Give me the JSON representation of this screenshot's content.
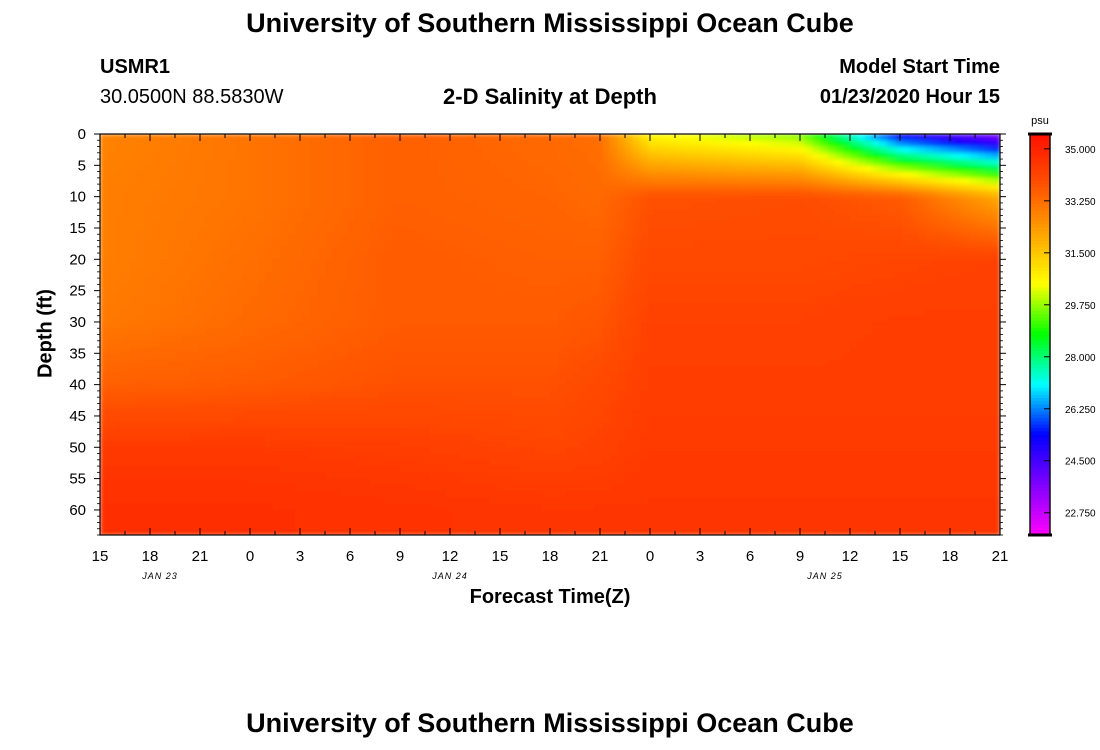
{
  "page": {
    "title_top": "University of Southern Mississippi Ocean Cube",
    "title_bottom": "University of Southern Mississippi Ocean Cube",
    "station_id": "USMR1",
    "coordinates": "30.0500N 88.5830W",
    "plot_title": "2-D Salinity at Depth",
    "model_label": "Model Start Time",
    "model_time": "01/23/2020 Hour 15"
  },
  "colors": {
    "ramp": [
      "#ff00ff",
      "#8000ff",
      "#0000ff",
      "#00ffff",
      "#00ff00",
      "#ffff00",
      "#ffa500",
      "#ff5000",
      "#ff1000"
    ]
  },
  "chart_data": {
    "type": "heatmap",
    "variable": "Salinity",
    "units": "psu",
    "xlabel": "Forecast Time(Z)",
    "ylabel": "Depth (ft)",
    "x_hours": [
      15,
      18,
      21,
      0,
      3,
      6,
      9,
      12,
      15,
      18,
      21,
      0,
      3,
      6,
      9,
      12,
      15,
      18,
      21
    ],
    "x_tick_labels": [
      "15",
      "18",
      "21",
      "0",
      "3",
      "6",
      "9",
      "12",
      "15",
      "18",
      "21",
      "0",
      "3",
      "6",
      "9",
      "12",
      "15",
      "18",
      "21"
    ],
    "date_labels": [
      {
        "label": "JAN 23",
        "at_tick": 1.2
      },
      {
        "label": "JAN 24",
        "at_tick": 7.0
      },
      {
        "label": "JAN 25",
        "at_tick": 14.5
      }
    ],
    "y_tick_labels": [
      "0",
      "5",
      "10",
      "15",
      "20",
      "25",
      "30",
      "35",
      "40",
      "45",
      "50",
      "55",
      "60"
    ],
    "ylim": [
      0,
      64
    ],
    "colorbar": {
      "min": 22.0,
      "max": 35.5,
      "tick_labels": [
        "35.000",
        "33.250",
        "31.500",
        "29.750",
        "28.000",
        "26.250",
        "24.500",
        "22.750"
      ],
      "units_label": "psu"
    },
    "salinity_grid_approx": {
      "columns_at_ticks": [
        0,
        3,
        6,
        9,
        10,
        11,
        14,
        16,
        18
      ],
      "depths_ft": [
        0,
        10,
        20,
        30,
        40,
        50,
        60
      ],
      "values": [
        [
          32.8,
          33.1,
          33.5,
          33.3,
          33.2,
          30.5,
          29.5,
          25.0,
          23.5
        ],
        [
          32.9,
          33.1,
          33.5,
          33.4,
          33.3,
          33.8,
          33.9,
          33.6,
          32.0
        ],
        [
          32.9,
          33.2,
          33.6,
          33.5,
          33.5,
          34.0,
          34.0,
          34.1,
          34.2
        ],
        [
          33.0,
          33.3,
          33.6,
          33.6,
          33.7,
          34.2,
          34.2,
          34.3,
          34.3
        ],
        [
          33.5,
          33.6,
          33.8,
          33.8,
          34.0,
          34.3,
          34.3,
          34.3,
          34.3
        ],
        [
          34.4,
          34.4,
          34.3,
          34.1,
          34.2,
          34.4,
          34.4,
          34.4,
          34.4
        ],
        [
          34.7,
          34.7,
          34.6,
          34.5,
          34.5,
          34.5,
          34.5,
          34.5,
          34.5
        ]
      ]
    }
  }
}
